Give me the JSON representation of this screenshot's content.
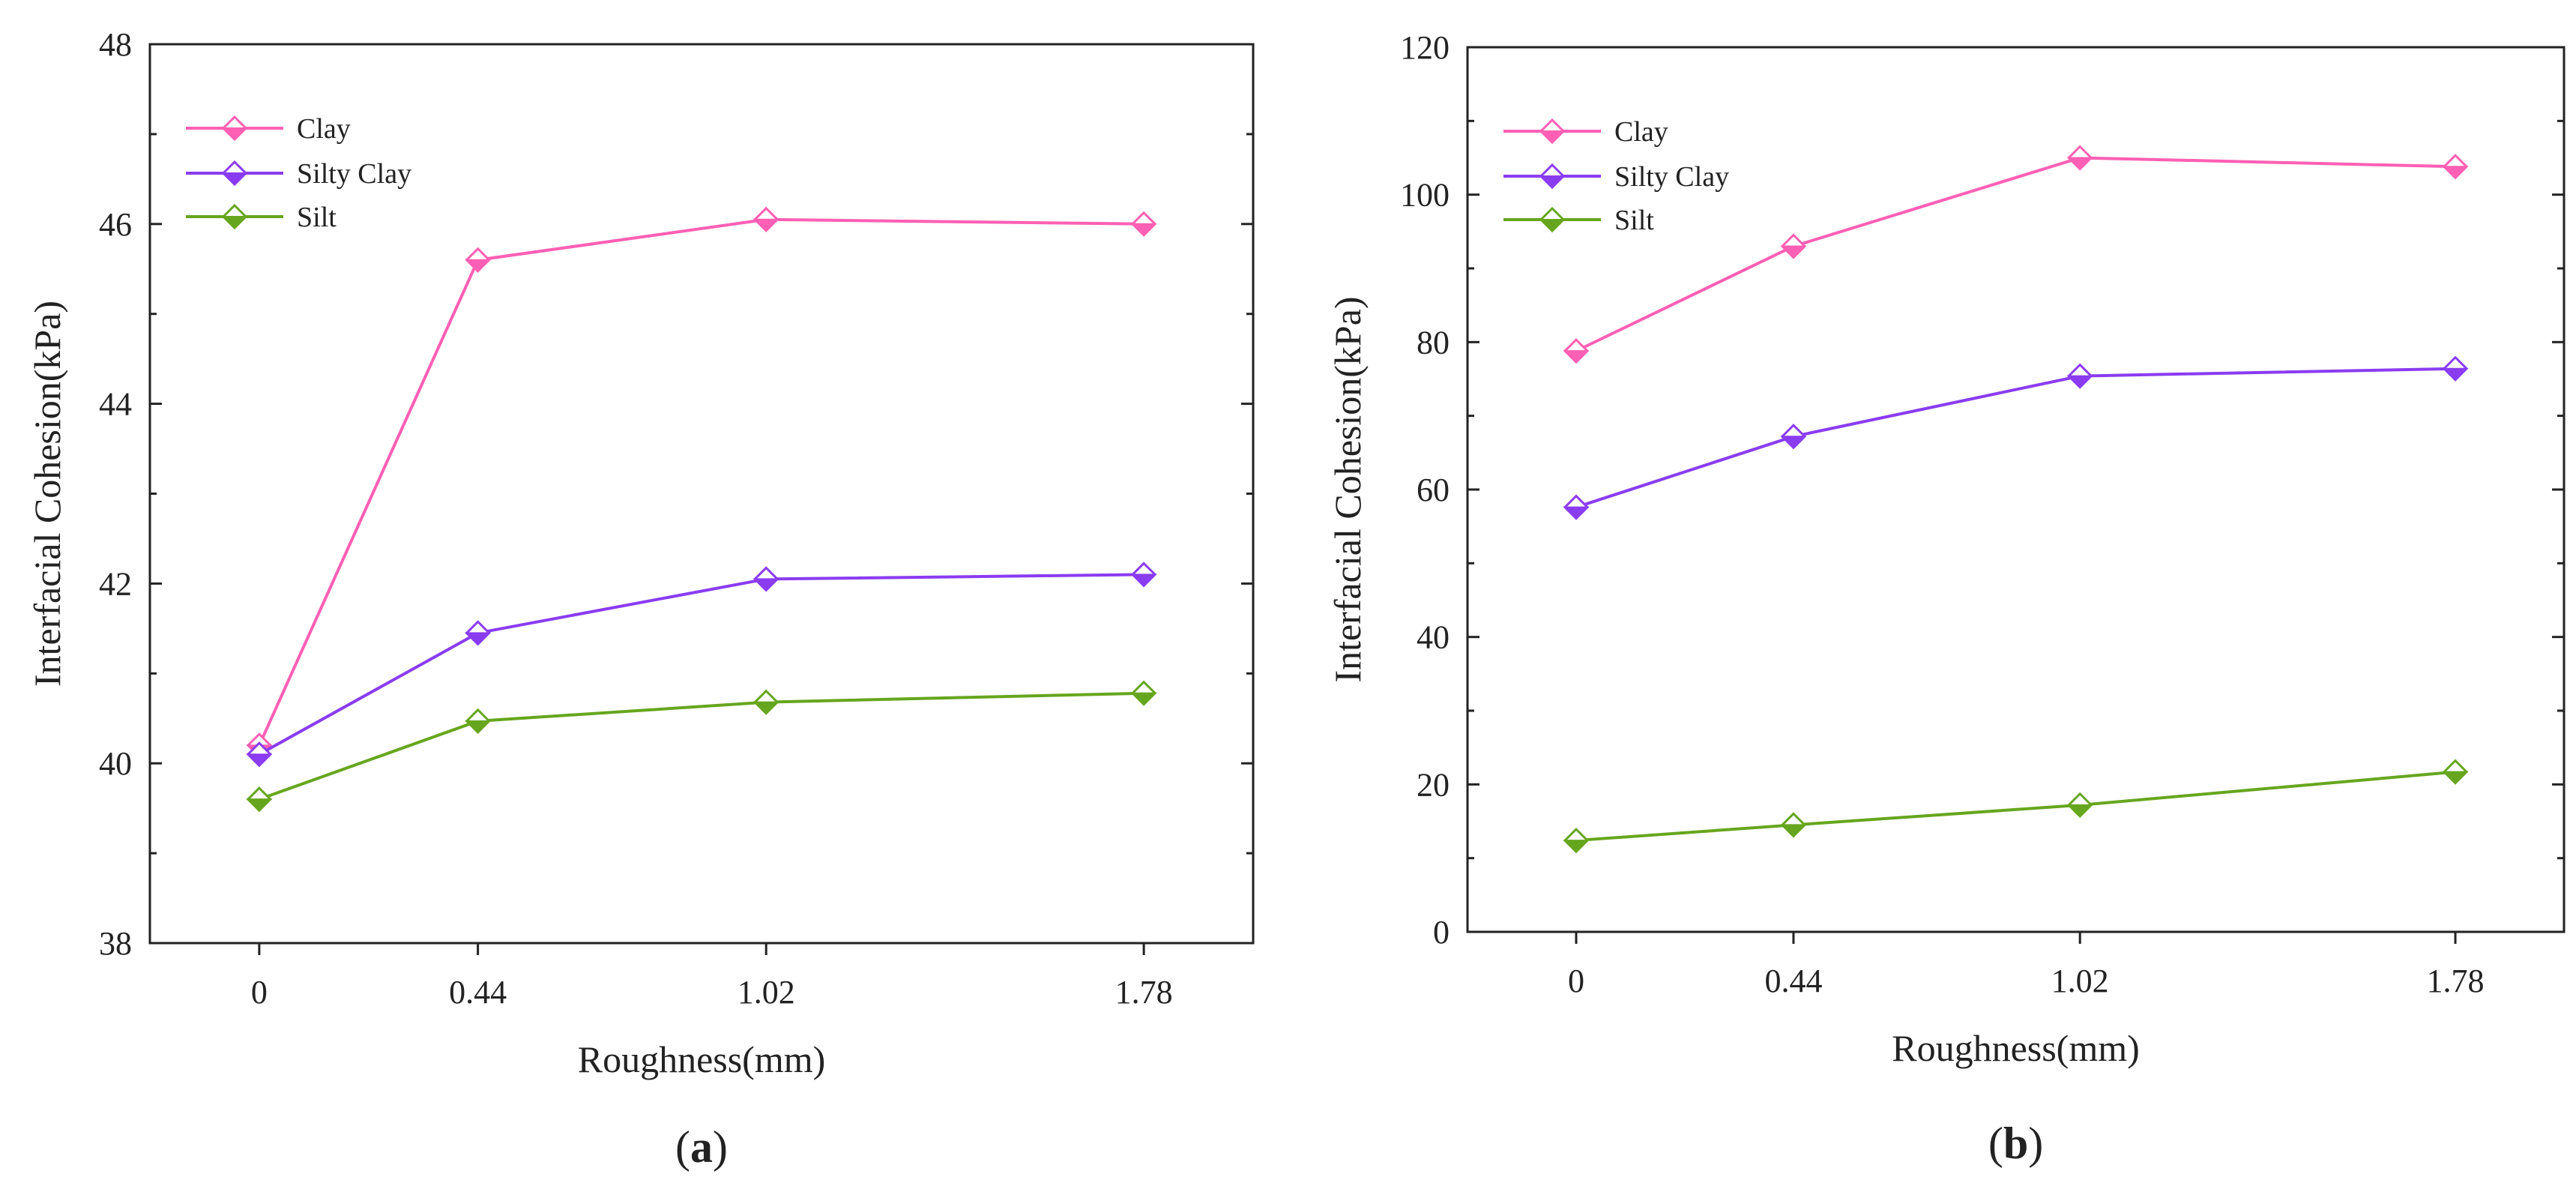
{
  "colors": {
    "clay": "#ff5fb4",
    "silty_clay": "#8a3cf0",
    "silt": "#66a61e",
    "axis": "#222222"
  },
  "chart_data": [
    {
      "type": "line",
      "panel_label": "a",
      "title": "",
      "xlabel": "Roughness(mm)",
      "ylabel": "Interfacial Cohesion(kPa)",
      "categories": [
        "0",
        "0.44",
        "1.02",
        "1.78"
      ],
      "x": [
        0,
        0.44,
        1.02,
        1.78
      ],
      "xlim": [
        -0.22,
        2.0
      ],
      "ylim": [
        38,
        48
      ],
      "yticks": [
        38,
        40,
        42,
        44,
        46,
        48
      ],
      "legend_position": "top-left",
      "series": [
        {
          "name": "Clay",
          "color_key": "clay",
          "values": [
            40.2,
            45.6,
            46.05,
            46.0
          ]
        },
        {
          "name": "Silty Clay",
          "color_key": "silty_clay",
          "values": [
            40.1,
            41.45,
            42.05,
            42.1
          ]
        },
        {
          "name": "Silt",
          "color_key": "silt",
          "values": [
            39.6,
            40.47,
            40.68,
            40.78
          ]
        }
      ]
    },
    {
      "type": "line",
      "panel_label": "b",
      "title": "",
      "xlabel": "Roughness(mm)",
      "ylabel": "Interfacial Cohesion(kPa)",
      "categories": [
        "0",
        "0.44",
        "1.02",
        "1.78"
      ],
      "x": [
        0,
        0.44,
        1.02,
        1.78
      ],
      "xlim": [
        -0.22,
        2.0
      ],
      "ylim": [
        0,
        120
      ],
      "yticks": [
        0,
        20,
        40,
        60,
        80,
        100,
        120
      ],
      "legend_position": "top-left",
      "series": [
        {
          "name": "Clay",
          "color_key": "clay",
          "values": [
            78.8,
            93.0,
            105.0,
            103.8
          ]
        },
        {
          "name": "Silty Clay",
          "color_key": "silty_clay",
          "values": [
            57.6,
            67.2,
            75.4,
            76.4
          ]
        },
        {
          "name": "Silt",
          "color_key": "silt",
          "values": [
            12.4,
            14.5,
            17.2,
            21.7
          ]
        }
      ]
    }
  ]
}
